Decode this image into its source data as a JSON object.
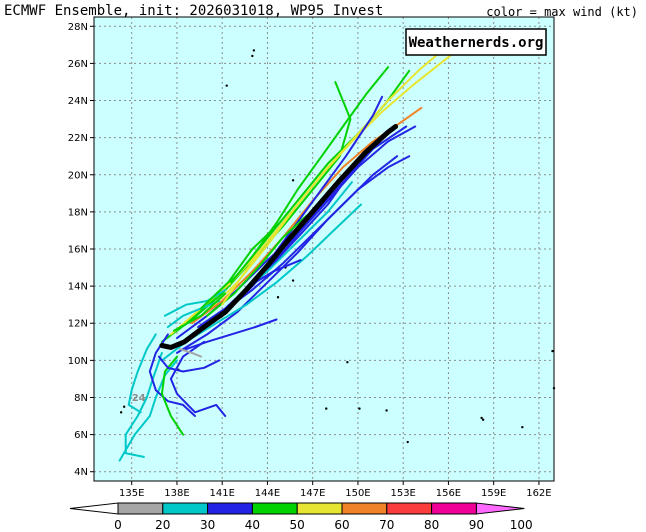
{
  "header": {
    "title": "ECMWF Ensemble, init: 2026031018, WP95 Invest",
    "legend_note": "color = max wind (kt)"
  },
  "watermark": "Weathernerds.org",
  "map": {
    "ocean_color": "#ccffff",
    "grid_color": "#8c8c8c",
    "lon_range": [
      132.5,
      163
    ],
    "lat_range": [
      3.5,
      28.5
    ],
    "x_ticks": [
      135,
      138,
      141,
      144,
      147,
      150,
      153,
      156,
      159,
      162
    ],
    "x_tick_labels": [
      "135E",
      "138E",
      "141E",
      "144E",
      "147E",
      "150E",
      "153E",
      "156E",
      "159E",
      "162E"
    ],
    "y_ticks": [
      4,
      6,
      8,
      10,
      12,
      14,
      16,
      18,
      20,
      22,
      24,
      26,
      28
    ],
    "y_tick_labels": [
      "4N",
      "6N",
      "8N",
      "10N",
      "12N",
      "14N",
      "16N",
      "18N",
      "20N",
      "22N",
      "24N",
      "26N",
      "28N"
    ],
    "annotation": "24"
  },
  "colorbar": {
    "labels": [
      "0",
      "20",
      "30",
      "40",
      "50",
      "60",
      "70",
      "80",
      "90",
      "100"
    ],
    "colors": [
      "#a6a6a6",
      "#00c8c8",
      "#2323e6",
      "#00d200",
      "#e6e632",
      "#f08228",
      "#fa3c3c",
      "#f00096"
    ],
    "under_color": "#ffffff",
    "over_color": "#ff69ff"
  },
  "chart_data": {
    "type": "track-map",
    "ensemble_mean": [
      [
        137.0,
        10.8
      ],
      [
        137.6,
        10.7
      ],
      [
        138.5,
        11.0
      ],
      [
        139.8,
        11.8
      ],
      [
        141.2,
        12.6
      ],
      [
        142.6,
        13.8
      ],
      [
        144.0,
        15.1
      ],
      [
        145.5,
        16.6
      ],
      [
        147.2,
        18.2
      ],
      [
        148.8,
        19.7
      ],
      [
        150.5,
        21.2
      ],
      [
        152.0,
        22.3
      ],
      [
        152.5,
        22.6
      ]
    ],
    "tracks": [
      {
        "color": "#00d200",
        "points": [
          [
            137.0,
            11.0
          ],
          [
            139.0,
            12.2
          ],
          [
            141.0,
            13.6
          ],
          [
            143.0,
            15.4
          ],
          [
            145.0,
            17.2
          ],
          [
            147.0,
            19.2
          ],
          [
            148.8,
            21.0
          ],
          [
            149.5,
            23.0
          ],
          [
            148.5,
            25.0
          ]
        ]
      },
      {
        "color": "#00d200",
        "points": [
          [
            138.0,
            11.6
          ],
          [
            140.0,
            13.0
          ],
          [
            142.0,
            14.6
          ],
          [
            144.0,
            16.6
          ],
          [
            146.0,
            18.6
          ],
          [
            148.0,
            20.6
          ],
          [
            150.0,
            22.2
          ],
          [
            151.8,
            23.8
          ],
          [
            153.4,
            25.6
          ]
        ]
      },
      {
        "color": "#2323e6",
        "points": [
          [
            138.0,
            11.2
          ],
          [
            140.0,
            12.4
          ],
          [
            142.0,
            13.8
          ],
          [
            144.0,
            15.4
          ],
          [
            146.0,
            16.8
          ],
          [
            148.0,
            18.6
          ],
          [
            150.0,
            20.4
          ],
          [
            152.0,
            21.8
          ],
          [
            153.8,
            22.6
          ]
        ]
      },
      {
        "color": "#2323e6",
        "points": [
          [
            138.0,
            10.4
          ],
          [
            140.0,
            11.4
          ],
          [
            142.0,
            12.6
          ],
          [
            144.0,
            14.2
          ],
          [
            146.0,
            15.8
          ],
          [
            148.0,
            17.6
          ],
          [
            150.0,
            19.2
          ],
          [
            152.0,
            20.4
          ],
          [
            153.4,
            21.0
          ]
        ]
      },
      {
        "color": "#e6e632",
        "points": [
          [
            137.6,
            11.4
          ],
          [
            139.6,
            12.8
          ],
          [
            141.6,
            14.2
          ],
          [
            143.6,
            16.0
          ],
          [
            145.6,
            18.0
          ],
          [
            147.6,
            20.0
          ],
          [
            149.6,
            21.8
          ],
          [
            151.6,
            23.4
          ],
          [
            153.6,
            24.8
          ],
          [
            156.4,
            26.6
          ]
        ]
      },
      {
        "color": "#e6e632",
        "points": [
          [
            140.0,
            12.6
          ],
          [
            142.0,
            14.2
          ],
          [
            144.0,
            16.2
          ],
          [
            146.0,
            18.4
          ],
          [
            148.0,
            20.4
          ],
          [
            150.0,
            22.2
          ],
          [
            152.0,
            24.0
          ],
          [
            154.0,
            25.6
          ],
          [
            156.6,
            27.4
          ]
        ]
      },
      {
        "color": "#f08228",
        "points": [
          [
            139.0,
            12.0
          ],
          [
            141.0,
            13.2
          ],
          [
            143.0,
            14.8
          ],
          [
            145.0,
            16.6
          ],
          [
            147.0,
            18.6
          ],
          [
            149.0,
            20.4
          ],
          [
            151.0,
            21.8
          ],
          [
            152.8,
            22.8
          ],
          [
            154.2,
            23.6
          ]
        ]
      },
      {
        "color": "#00c8c8",
        "points": [
          [
            137.0,
            10.0
          ],
          [
            138.6,
            11.0
          ],
          [
            140.6,
            12.0
          ],
          [
            142.6,
            13.0
          ],
          [
            144.6,
            14.2
          ],
          [
            146.6,
            15.6
          ],
          [
            148.4,
            17.0
          ],
          [
            150.2,
            18.4
          ]
        ]
      },
      {
        "color": "#00c8c8",
        "points": [
          [
            137.0,
            10.4
          ],
          [
            136.4,
            9.0
          ],
          [
            136.0,
            8.0
          ],
          [
            135.4,
            7.0
          ],
          [
            134.6,
            6.0
          ],
          [
            134.6,
            5.0
          ],
          [
            135.8,
            4.8
          ]
        ]
      },
      {
        "color": "#00c8c8",
        "points": [
          [
            138.0,
            10.0
          ],
          [
            137.2,
            9.2
          ],
          [
            136.6,
            8.0
          ],
          [
            136.2,
            7.0
          ],
          [
            135.2,
            6.0
          ],
          [
            134.2,
            4.6
          ]
        ]
      },
      {
        "color": "#2323e6",
        "points": [
          [
            137.4,
            11.4
          ],
          [
            136.6,
            10.4
          ],
          [
            136.2,
            9.4
          ],
          [
            136.6,
            8.4
          ],
          [
            137.4,
            7.8
          ],
          [
            138.4,
            7.6
          ],
          [
            139.2,
            7.0
          ]
        ]
      },
      {
        "color": "#2323e6",
        "points": [
          [
            139.8,
            11.0
          ],
          [
            138.4,
            10.2
          ],
          [
            137.6,
            9.0
          ],
          [
            138.0,
            8.2
          ],
          [
            139.2,
            7.2
          ],
          [
            140.6,
            7.6
          ],
          [
            141.2,
            7.0
          ]
        ]
      },
      {
        "color": "#00d200",
        "points": [
          [
            138.0,
            10.2
          ],
          [
            137.2,
            9.4
          ],
          [
            137.0,
            8.2
          ],
          [
            137.6,
            7.0
          ],
          [
            138.4,
            6.0
          ]
        ]
      },
      {
        "color": "#00c8c8",
        "points": [
          [
            136.6,
            11.4
          ],
          [
            136.0,
            10.6
          ],
          [
            135.4,
            9.4
          ],
          [
            135.0,
            8.4
          ],
          [
            134.8,
            7.6
          ],
          [
            135.6,
            7.2
          ]
        ]
      },
      {
        "color": "#2323e6",
        "points": [
          [
            142.0,
            13.2
          ],
          [
            143.8,
            15.0
          ],
          [
            145.6,
            17.0
          ],
          [
            147.4,
            19.0
          ],
          [
            149.2,
            21.0
          ],
          [
            151.0,
            23.2
          ],
          [
            151.6,
            24.2
          ]
        ]
      },
      {
        "color": "#2323e6",
        "points": [
          [
            141.0,
            12.4
          ],
          [
            143.0,
            14.0
          ],
          [
            145.0,
            15.8
          ],
          [
            147.0,
            17.8
          ],
          [
            149.0,
            19.6
          ],
          [
            151.0,
            21.4
          ],
          [
            153.2,
            22.6
          ]
        ]
      },
      {
        "color": "#00d200",
        "points": [
          [
            141.6,
            14.2
          ],
          [
            143.0,
            15.6
          ],
          [
            144.6,
            17.4
          ],
          [
            146.0,
            19.2
          ],
          [
            147.6,
            21.0
          ],
          [
            149.0,
            22.6
          ],
          [
            150.6,
            24.4
          ],
          [
            152.0,
            25.8
          ]
        ]
      },
      {
        "color": "#2323e6",
        "points": [
          [
            139.0,
            11.4
          ],
          [
            141.0,
            12.6
          ],
          [
            143.0,
            13.8
          ],
          [
            145.0,
            15.2
          ],
          [
            147.0,
            16.8
          ],
          [
            149.0,
            18.4
          ],
          [
            151.0,
            20.0
          ],
          [
            152.6,
            21.0
          ]
        ]
      },
      {
        "color": "#00c8c8",
        "points": [
          [
            140.0,
            11.8
          ],
          [
            142.0,
            13.4
          ],
          [
            144.0,
            14.8
          ],
          [
            146.0,
            16.4
          ],
          [
            148.0,
            18.0
          ],
          [
            149.6,
            19.6
          ]
        ]
      },
      {
        "color": "#2323e6",
        "points": [
          [
            138.6,
            10.6
          ],
          [
            140.0,
            11.0
          ],
          [
            141.6,
            11.4
          ],
          [
            143.2,
            11.8
          ],
          [
            144.6,
            12.2
          ]
        ]
      },
      {
        "color": "#00c8c8",
        "points": [
          [
            137.4,
            11.8
          ],
          [
            138.4,
            12.4
          ],
          [
            139.6,
            12.8
          ],
          [
            140.8,
            13.2
          ]
        ]
      },
      {
        "color": "#00d200",
        "points": [
          [
            140.0,
            12.4
          ],
          [
            141.8,
            13.6
          ],
          [
            143.6,
            15.2
          ],
          [
            145.0,
            16.6
          ],
          [
            146.6,
            17.8
          ]
        ]
      },
      {
        "color": "#e6e632",
        "points": [
          [
            141.0,
            13.0
          ],
          [
            142.2,
            14.4
          ],
          [
            143.6,
            16.0
          ],
          [
            144.8,
            17.2
          ]
        ]
      },
      {
        "color": "#2323e6",
        "points": [
          [
            139.4,
            11.8
          ],
          [
            141.2,
            12.8
          ],
          [
            142.8,
            14.0
          ],
          [
            144.4,
            14.8
          ],
          [
            146.2,
            15.4
          ]
        ]
      },
      {
        "color": "#00c8c8",
        "points": [
          [
            137.2,
            12.4
          ],
          [
            138.6,
            13.0
          ],
          [
            140.0,
            13.2
          ],
          [
            141.2,
            13.8
          ]
        ]
      },
      {
        "color": "#2323e6",
        "points": [
          [
            136.8,
            10.2
          ],
          [
            137.4,
            9.6
          ],
          [
            138.4,
            9.4
          ],
          [
            139.8,
            9.6
          ],
          [
            140.8,
            10.0
          ]
        ]
      },
      {
        "color": "#a6a6a6",
        "points": [
          [
            138.2,
            10.6
          ],
          [
            139.0,
            10.4
          ],
          [
            139.6,
            10.2
          ]
        ]
      },
      {
        "color": "#00d200",
        "points": [
          [
            137.8,
            11.6
          ],
          [
            139.6,
            12.4
          ],
          [
            141.2,
            13.6
          ]
        ]
      },
      {
        "color": "#2323e6",
        "points": [
          [
            143.0,
            14.2
          ],
          [
            144.6,
            15.4
          ],
          [
            146.2,
            16.8
          ],
          [
            148.0,
            18.4
          ],
          [
            149.4,
            20.0
          ],
          [
            150.6,
            21.4
          ]
        ]
      },
      {
        "color": "#00d200",
        "points": [
          [
            139.6,
            12.8
          ],
          [
            141.4,
            14.2
          ],
          [
            143.0,
            16.0
          ],
          [
            144.8,
            17.4
          ],
          [
            145.4,
            18.0
          ]
        ]
      }
    ],
    "islands": [
      [
        143.0,
        26.4
      ],
      [
        143.1,
        26.7
      ],
      [
        141.3,
        24.8
      ],
      [
        145.7,
        19.7
      ],
      [
        145.8,
        18.1
      ],
      [
        145.2,
        15.0
      ],
      [
        145.7,
        14.3
      ],
      [
        144.7,
        13.4
      ],
      [
        138.1,
        9.5
      ],
      [
        134.5,
        7.5
      ],
      [
        134.3,
        7.2
      ],
      [
        150.1,
        7.4
      ],
      [
        151.9,
        7.3
      ],
      [
        158.2,
        6.9
      ],
      [
        158.3,
        6.8
      ],
      [
        160.9,
        6.4
      ],
      [
        162.9,
        10.5
      ],
      [
        163.0,
        8.5
      ],
      [
        153.3,
        5.6
      ],
      [
        147.9,
        7.4
      ],
      [
        149.3,
        9.9
      ]
    ]
  }
}
